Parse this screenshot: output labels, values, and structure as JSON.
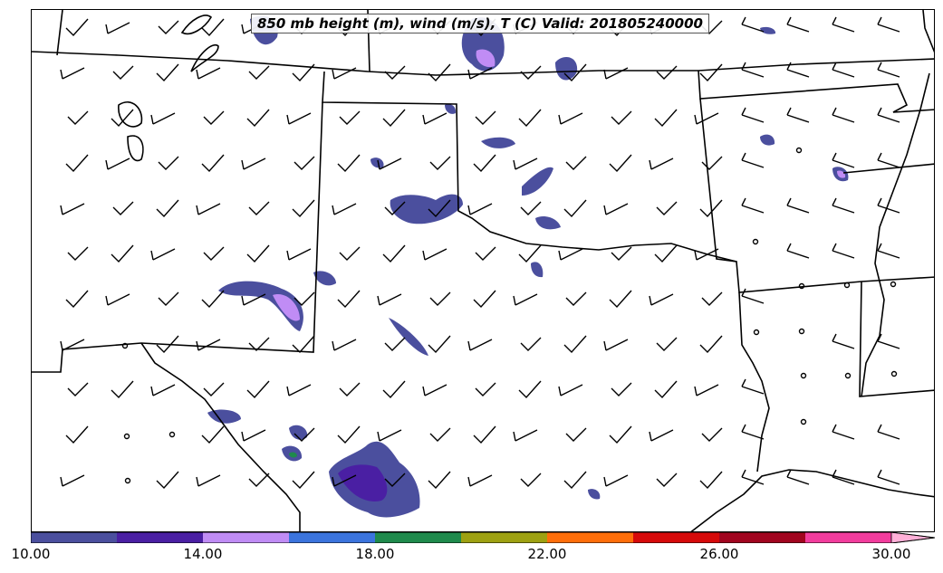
{
  "title": "850 mb height (m), wind (m/s), T (C) Valid: 201805240000",
  "colorbar": {
    "colors": [
      "#4b4f9e",
      "#4a1fa3",
      "#c08cf5",
      "#3b74dd",
      "#1f8a4c",
      "#9ea112",
      "#ff6e0a",
      "#d60a0a",
      "#a1051f",
      "#f23c9d",
      "#ffb0d8"
    ],
    "tick_labels": [
      "10.00",
      "14.00",
      "18.00",
      "22.00",
      "26.00",
      "30.00"
    ],
    "tick_values": [
      10,
      14,
      18,
      22,
      26,
      30
    ],
    "range": [
      10,
      31
    ]
  },
  "chart_data": {
    "type": "map",
    "title": "850 mb height (m), wind (m/s), T (C) Valid: 201805240000",
    "variable": "T (C)",
    "contour_levels": [
      10,
      12,
      14,
      16,
      18,
      20,
      22,
      24,
      26,
      28,
      30
    ],
    "region": "south-central United States"
  },
  "icons": [
    "wind-barb-icon",
    "calm-wind-circle-icon"
  ]
}
